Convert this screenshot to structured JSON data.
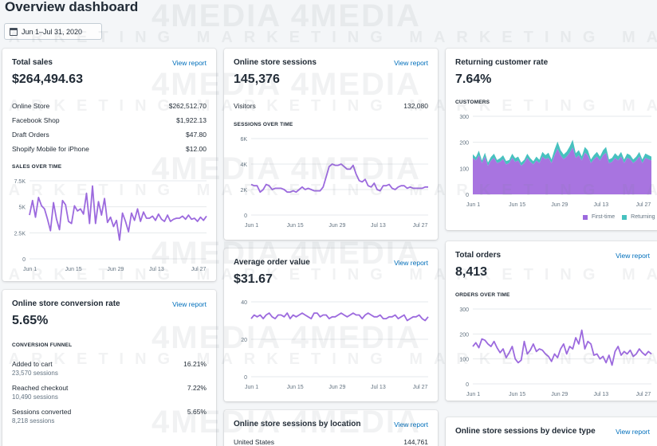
{
  "page_title": "Overview dashboard",
  "date_range": "Jun 1–Jul 31, 2020",
  "watermark": {
    "brand": "4MEDIA",
    "tag": "MARKETING"
  },
  "colors": {
    "accent": "#9c6ade",
    "secondary": "#47c1bf",
    "link": "#006fbb"
  },
  "x_ticks": [
    "Jun 1",
    "Jun 15",
    "Jun 29",
    "Jul 13",
    "Jul 27"
  ],
  "total_sales": {
    "title": "Total sales",
    "link": "View report",
    "value": "$264,494.63",
    "rows": [
      {
        "label": "Online Store",
        "value": "$262,512.70"
      },
      {
        "label": "Facebook Shop",
        "value": "$1,922.13"
      },
      {
        "label": "Draft Orders",
        "value": "$47.80"
      },
      {
        "label": "Shopify Mobile for iPhone",
        "value": "$12.00"
      }
    ],
    "chart_label": "SALES OVER TIME",
    "y_ticks": [
      "7.5K",
      "5K",
      "2.5K",
      "0"
    ]
  },
  "sessions": {
    "title": "Online store sessions",
    "link": "View report",
    "value": "145,376",
    "rows": [
      {
        "label": "Visitors",
        "value": "132,080"
      }
    ],
    "chart_label": "SESSIONS OVER TIME",
    "y_ticks": [
      "6K",
      "4K",
      "2K",
      "0"
    ]
  },
  "returning": {
    "title": "Returning customer rate",
    "value": "7.64%",
    "chart_label": "CUSTOMERS",
    "y_ticks": [
      "300",
      "200",
      "100",
      "0"
    ],
    "legend": [
      "First-time",
      "Returning"
    ]
  },
  "conversion": {
    "title": "Online store conversion rate",
    "link": "View report",
    "value": "5.65%",
    "chart_label": "CONVERSION FUNNEL",
    "rows": [
      {
        "label": "Added to cart",
        "sub": "23,570 sessions",
        "value": "16.21%"
      },
      {
        "label": "Reached checkout",
        "sub": "10,490 sessions",
        "value": "7.22%"
      },
      {
        "label": "Sessions converted",
        "sub": "8,218 sessions",
        "value": "5.65%"
      }
    ]
  },
  "aov": {
    "title": "Average order value",
    "link": "View report",
    "value": "$31.67",
    "y_ticks": [
      "40",
      "20",
      "0"
    ]
  },
  "orders": {
    "title": "Total orders",
    "link": "View report",
    "value": "8,413",
    "chart_label": "ORDERS OVER TIME",
    "y_ticks": [
      "300",
      "200",
      "100",
      "0"
    ]
  },
  "by_location": {
    "title": "Online store sessions by location",
    "link": "View report",
    "rows": [
      {
        "label": "United States",
        "value": "144,761"
      }
    ]
  },
  "by_device": {
    "title": "Online store sessions by device type",
    "link": "View report"
  },
  "chart_data": [
    {
      "type": "line",
      "name": "sales",
      "ylim": [
        0,
        7500
      ],
      "x_ticks": [
        "Jun 1",
        "Jun 15",
        "Jun 29",
        "Jul 13",
        "Jul 27"
      ],
      "values": [
        4200,
        5600,
        4000,
        5900,
        5100,
        4800,
        3800,
        2700,
        5400,
        3800,
        2800,
        5600,
        5200,
        3600,
        3400,
        5100,
        4600,
        4800,
        4300,
        6300,
        3400,
        7000,
        3400,
        5500,
        4200,
        5800,
        3500,
        4000,
        3100,
        3700,
        1800,
        4400,
        3600,
        2600,
        4400,
        3700,
        4800,
        3600,
        4500,
        3900,
        3900,
        4100,
        3700,
        4300,
        3800,
        3600,
        4200,
        3600,
        3800,
        3900,
        3900,
        4100,
        3800,
        4200,
        3800,
        3900,
        3600,
        4000,
        3700,
        4100
      ]
    },
    {
      "type": "line",
      "name": "sessions",
      "ylim": [
        0,
        6000
      ],
      "x_ticks": [
        "Jun 1",
        "Jun 15",
        "Jun 29",
        "Jul 13",
        "Jul 27"
      ],
      "values": [
        2400,
        2300,
        2300,
        1800,
        2000,
        2400,
        2300,
        2000,
        2100,
        2100,
        2100,
        2000,
        1800,
        1800,
        1900,
        1800,
        2000,
        2200,
        2000,
        2100,
        2000,
        1900,
        1900,
        1900,
        2200,
        3000,
        3800,
        4000,
        3900,
        3900,
        4000,
        3800,
        3600,
        3600,
        3900,
        3200,
        2700,
        2600,
        2800,
        2300,
        2200,
        2500,
        2000,
        1900,
        2300,
        2300,
        2400,
        2100,
        2000,
        2200,
        2300,
        2300,
        2100,
        2200,
        2100,
        2100,
        2100,
        2100,
        2200,
        2200
      ]
    },
    {
      "type": "area",
      "name": "customers",
      "ylim": [
        0,
        300
      ],
      "x_ticks": [
        "Jun 1",
        "Jun 15",
        "Jun 29",
        "Jul 13",
        "Jul 27"
      ],
      "series": [
        {
          "name": "First-time",
          "values": [
            140,
            130,
            150,
            120,
            145,
            110,
            130,
            140,
            120,
            125,
            135,
            115,
            120,
            140,
            125,
            130,
            110,
            120,
            140,
            125,
            115,
            130,
            120,
            145,
            135,
            140,
            120,
            150,
            175,
            150,
            135,
            145,
            160,
            180,
            140,
            150,
            130,
            160,
            150,
            120,
            135,
            145,
            130,
            150,
            160,
            120,
            125,
            140,
            130,
            145,
            120,
            140,
            135,
            120,
            130,
            145,
            120,
            140,
            135,
            130
          ]
        },
        {
          "name": "Returning",
          "values": [
            14,
            12,
            18,
            10,
            15,
            12,
            14,
            16,
            12,
            14,
            15,
            13,
            12,
            16,
            14,
            15,
            12,
            13,
            16,
            14,
            12,
            15,
            13,
            18,
            16,
            20,
            14,
            22,
            28,
            20,
            18,
            19,
            24,
            30,
            18,
            20,
            16,
            22,
            19,
            14,
            16,
            18,
            15,
            19,
            22,
            14,
            15,
            18,
            16,
            18,
            14,
            17,
            16,
            14,
            15,
            18,
            14,
            17,
            16,
            15
          ]
        }
      ]
    },
    {
      "type": "line",
      "name": "aov",
      "ylim": [
        0,
        40
      ],
      "x_ticks": [
        "Jun 1",
        "Jun 15",
        "Jun 29",
        "Jul 13",
        "Jul 27"
      ],
      "values": [
        31,
        33,
        32,
        33,
        31,
        33,
        34,
        32,
        31,
        33,
        33,
        32,
        34,
        31,
        33,
        32,
        33,
        34,
        33,
        32,
        31,
        34,
        34,
        32,
        33,
        33,
        31,
        32,
        32,
        33,
        34,
        33,
        32,
        33,
        34,
        33,
        33,
        31,
        33,
        34,
        33,
        32,
        32,
        33,
        31,
        31,
        32,
        32,
        33,
        31,
        32,
        33,
        30,
        31,
        32,
        32,
        33,
        31,
        30,
        32
      ]
    },
    {
      "type": "line",
      "name": "orders",
      "ylim": [
        0,
        300
      ],
      "x_ticks": [
        "Jun 1",
        "Jun 15",
        "Jun 29",
        "Jul 13",
        "Jul 27"
      ],
      "values": [
        150,
        165,
        145,
        180,
        175,
        160,
        150,
        170,
        145,
        125,
        140,
        105,
        125,
        150,
        100,
        85,
        95,
        170,
        120,
        135,
        160,
        130,
        140,
        135,
        120,
        110,
        90,
        120,
        105,
        140,
        160,
        120,
        150,
        140,
        185,
        160,
        215,
        140,
        170,
        160,
        115,
        120,
        100,
        110,
        85,
        115,
        75,
        130,
        150,
        115,
        130,
        120,
        135,
        110,
        120,
        140,
        125,
        115,
        130,
        120
      ]
    }
  ]
}
